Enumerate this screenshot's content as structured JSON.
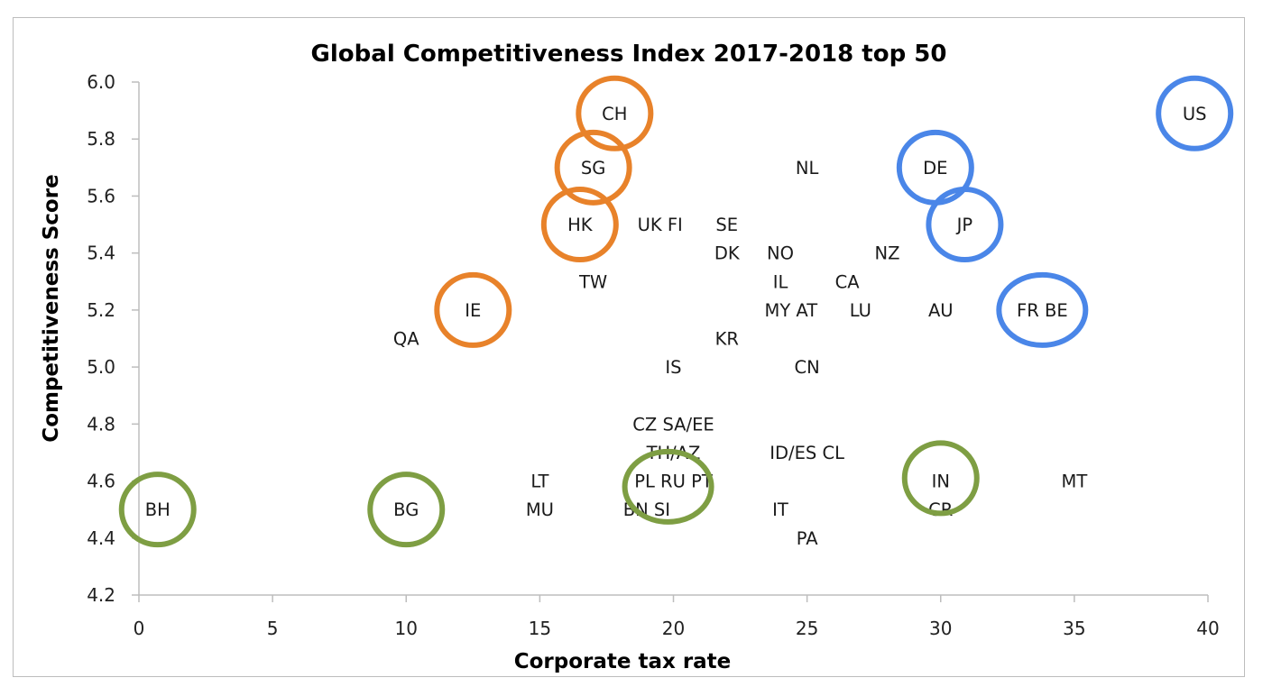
{
  "chart_data": {
    "type": "scatter",
    "title": "Global Competitiveness Index 2017-2018 top 50",
    "xlabel": "Corporate tax rate",
    "ylabel": "Competitiveness Score",
    "xlim": [
      0,
      40
    ],
    "ylim": [
      4.2,
      6.0
    ],
    "x_ticks": [
      0,
      5,
      10,
      15,
      20,
      25,
      30,
      35,
      40
    ],
    "x_tick_labels": [
      "0",
      "5",
      "10",
      "15",
      "20",
      "25",
      "30",
      "35",
      "40"
    ],
    "y_ticks": [
      4.2,
      4.4,
      4.6,
      4.8,
      5.0,
      5.2,
      5.4,
      5.6,
      5.8,
      6.0
    ],
    "y_tick_labels": [
      "4.2",
      "4.4",
      "4.6",
      "4.8",
      "5.0",
      "5.2",
      "5.4",
      "5.6",
      "5.8",
      "6.0"
    ],
    "grid": false,
    "legend": "none",
    "highlight_colors": {
      "orange": "#E8822A",
      "blue": "#4A86E8",
      "green": "#7E9E43"
    },
    "points": [
      {
        "label": "CH",
        "x": 17.8,
        "y": 5.89
      },
      {
        "label": "SG",
        "x": 17.0,
        "y": 5.7
      },
      {
        "label": "HK",
        "x": 16.5,
        "y": 5.5
      },
      {
        "label": "UK FI",
        "x": 19.5,
        "y": 5.5
      },
      {
        "label": "SE",
        "x": 22.0,
        "y": 5.5
      },
      {
        "label": "NL",
        "x": 25.0,
        "y": 5.7
      },
      {
        "label": "DE",
        "x": 29.8,
        "y": 5.7
      },
      {
        "label": "US",
        "x": 39.5,
        "y": 5.89
      },
      {
        "label": "JP",
        "x": 30.9,
        "y": 5.5
      },
      {
        "label": "DK",
        "x": 22.0,
        "y": 5.4
      },
      {
        "label": "NO",
        "x": 24.0,
        "y": 5.4
      },
      {
        "label": "NZ",
        "x": 28.0,
        "y": 5.4
      },
      {
        "label": "TW",
        "x": 17.0,
        "y": 5.3
      },
      {
        "label": "IL",
        "x": 24.0,
        "y": 5.3
      },
      {
        "label": "CA",
        "x": 26.5,
        "y": 5.3
      },
      {
        "label": "IE",
        "x": 12.5,
        "y": 5.2
      },
      {
        "label": "MY AT",
        "x": 24.4,
        "y": 5.2
      },
      {
        "label": "LU",
        "x": 27.0,
        "y": 5.2
      },
      {
        "label": "AU",
        "x": 30.0,
        "y": 5.2
      },
      {
        "label": "FR BE",
        "x": 33.8,
        "y": 5.2
      },
      {
        "label": "QA",
        "x": 10.0,
        "y": 5.1
      },
      {
        "label": "KR",
        "x": 22.0,
        "y": 5.1
      },
      {
        "label": "IS",
        "x": 20.0,
        "y": 5.0
      },
      {
        "label": "CN",
        "x": 25.0,
        "y": 5.0
      },
      {
        "label": "CZ SA/EE",
        "x": 20.0,
        "y": 4.8
      },
      {
        "label": "TH/AZ",
        "x": 20.0,
        "y": 4.7
      },
      {
        "label": "ID/ES CL",
        "x": 25.0,
        "y": 4.7
      },
      {
        "label": "LT",
        "x": 15.0,
        "y": 4.6
      },
      {
        "label": "PL RU PT",
        "x": 20.0,
        "y": 4.6
      },
      {
        "label": "IN",
        "x": 30.0,
        "y": 4.6
      },
      {
        "label": "MT",
        "x": 35.0,
        "y": 4.6
      },
      {
        "label": "BH",
        "x": 0.7,
        "y": 4.5
      },
      {
        "label": "BG",
        "x": 10.0,
        "y": 4.5
      },
      {
        "label": "MU",
        "x": 15.0,
        "y": 4.5
      },
      {
        "label": "BN SI",
        "x": 19.0,
        "y": 4.5
      },
      {
        "label": "IT",
        "x": 24.0,
        "y": 4.5
      },
      {
        "label": "CR",
        "x": 30.0,
        "y": 4.5
      },
      {
        "label": "PA",
        "x": 25.0,
        "y": 4.4
      }
    ],
    "annotations": [
      {
        "type": "circle",
        "color": "orange",
        "label": "CH",
        "x": 17.8,
        "y": 5.89
      },
      {
        "type": "circle",
        "color": "orange",
        "label": "SG",
        "x": 17.0,
        "y": 5.7
      },
      {
        "type": "circle",
        "color": "orange",
        "label": "HK",
        "x": 16.5,
        "y": 5.5
      },
      {
        "type": "circle",
        "color": "orange",
        "label": "IE",
        "x": 12.5,
        "y": 5.2
      },
      {
        "type": "circle",
        "color": "blue",
        "label": "US",
        "x": 39.5,
        "y": 5.89
      },
      {
        "type": "circle",
        "color": "blue",
        "label": "DE",
        "x": 29.8,
        "y": 5.7
      },
      {
        "type": "circle",
        "color": "blue",
        "label": "JP",
        "x": 30.9,
        "y": 5.5
      },
      {
        "type": "circle",
        "color": "blue",
        "label": "FR BE",
        "x": 33.8,
        "y": 5.2
      },
      {
        "type": "circle",
        "color": "green",
        "label": "BH",
        "x": 0.7,
        "y": 4.5
      },
      {
        "type": "circle",
        "color": "green",
        "label": "BG",
        "x": 10.0,
        "y": 4.5
      },
      {
        "type": "circle",
        "color": "green",
        "label": "PL RU PT",
        "x": 19.8,
        "y": 4.58
      },
      {
        "type": "circle",
        "color": "green",
        "label": "IN",
        "x": 30.0,
        "y": 4.61
      }
    ]
  }
}
